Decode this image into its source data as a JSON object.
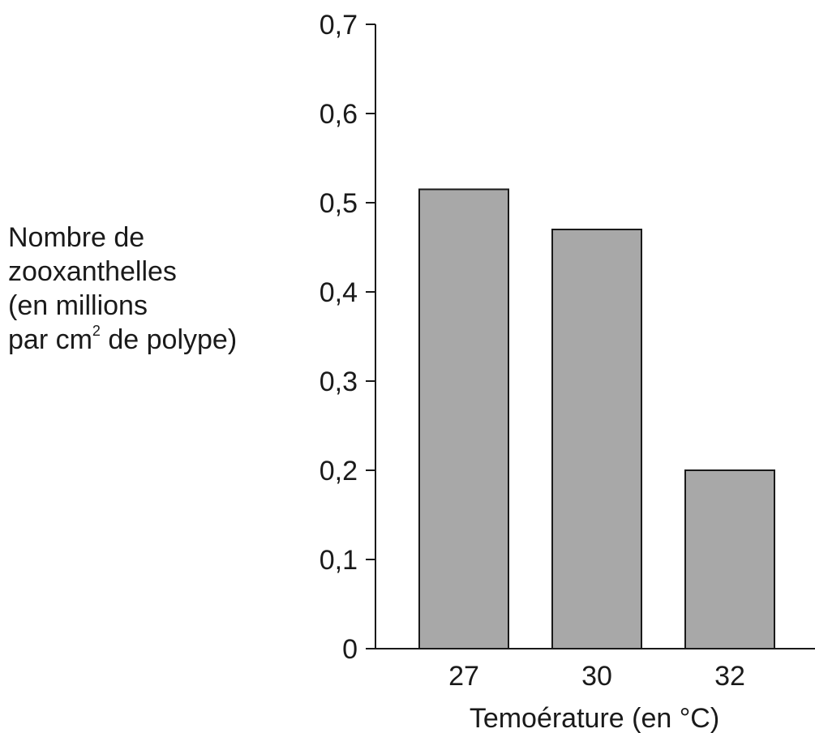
{
  "chart_data": {
    "type": "bar",
    "categories": [
      "27",
      "30",
      "32"
    ],
    "values": [
      0.515,
      0.47,
      0.2
    ],
    "ylim": [
      0,
      0.7
    ],
    "yticks": [
      "0",
      "0,1",
      "0,2",
      "0,3",
      "0,4",
      "0,5",
      "0,6",
      "0,7"
    ],
    "ylabel": {
      "line1": "Nombre de",
      "line2": "zooxanthelles",
      "line3": "(en millions",
      "line4_prefix": "par cm",
      "line4_sup": "2",
      "line4_suffix": " de polype)"
    },
    "xlabel": "Temoérature (en °C)",
    "grid": false,
    "bar_color": "#a8a8a8",
    "bar_stroke": "#1a1a1a"
  }
}
